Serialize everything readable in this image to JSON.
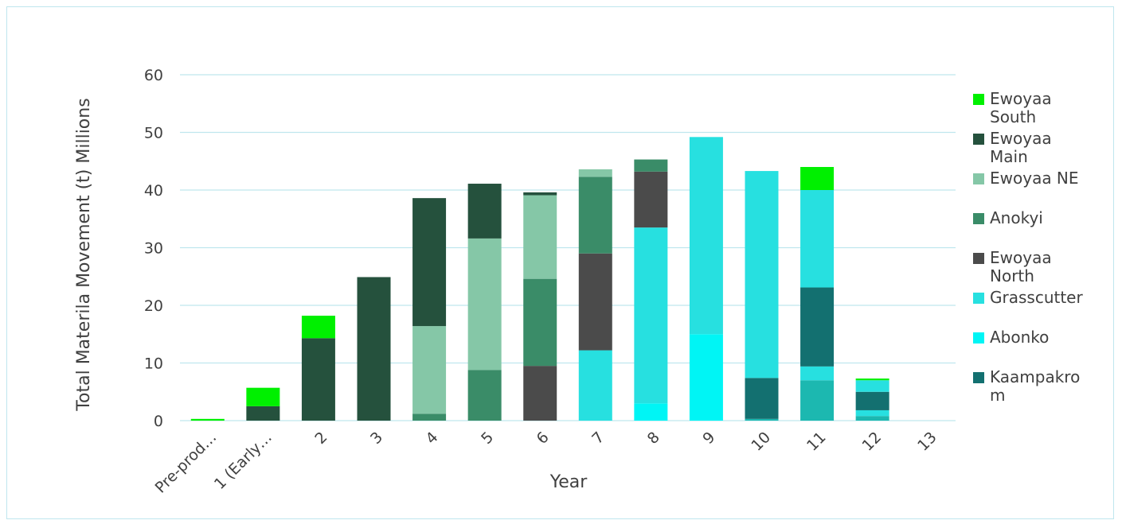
{
  "chart_data": {
    "type": "bar",
    "stacked": true,
    "xlabel": "Year",
    "ylabel": "Total Materila Movement (t) Millions",
    "ylim": [
      0,
      60
    ],
    "yticks": [
      0,
      10,
      20,
      30,
      40,
      50,
      60
    ],
    "grid": true,
    "legend_position": "right",
    "categories": [
      "Pre-prod…",
      "1 (Early…",
      "2",
      "3",
      "4",
      "5",
      "6",
      "7",
      "8",
      "9",
      "10",
      "11",
      "12",
      "13"
    ],
    "series": [
      {
        "name": "Kaampakrom",
        "color": "#137070",
        "values": [
          0,
          0,
          0,
          0,
          0,
          0,
          0,
          0,
          0,
          0,
          0,
          0,
          0,
          0
        ]
      },
      {
        "name": "Abonko",
        "color": "#00F5F5",
        "values": [
          0,
          0,
          0,
          0,
          0,
          0,
          0,
          0,
          3.0,
          15.0,
          0,
          0,
          0,
          0
        ]
      },
      {
        "name": "",
        "color": "#1CB8B0",
        "values": [
          0,
          0,
          0,
          0,
          0,
          0,
          0,
          0,
          0,
          0,
          0.3,
          7.0,
          0.8,
          0
        ]
      },
      {
        "name": "Grasscutter",
        "color": "#27E0E0",
        "values": [
          0,
          0,
          0,
          0,
          0,
          0,
          0,
          12.2,
          30.5,
          34.2,
          0,
          2.4,
          1.0,
          0
        ]
      },
      {
        "name": "",
        "color": "#137070",
        "values": [
          0,
          0,
          0,
          0,
          0,
          0,
          0,
          0,
          0,
          0,
          7.1,
          13.7,
          3.2,
          0
        ]
      },
      {
        "name": "",
        "color": "#27E0E0",
        "values": [
          0,
          0,
          0,
          0,
          0,
          0,
          0,
          0,
          0,
          0,
          35.9,
          16.9,
          2.0,
          0
        ]
      },
      {
        "name": "Ewoyaa North",
        "color": "#4B4B4B",
        "values": [
          0,
          0,
          0,
          0,
          0,
          0,
          9.5,
          16.8,
          9.7,
          0,
          0,
          0,
          0,
          0
        ]
      },
      {
        "name": "Anokyi",
        "color": "#3A8C68",
        "values": [
          0,
          0,
          0,
          0,
          1.2,
          8.8,
          15.1,
          13.3,
          2.1,
          0,
          0,
          0,
          0,
          0
        ]
      },
      {
        "name": "Ewoyaa NE",
        "color": "#85C7A7",
        "values": [
          0,
          0,
          0,
          0,
          15.2,
          22.8,
          14.5,
          1.3,
          0,
          0,
          0,
          0,
          0,
          0
        ]
      },
      {
        "name": "Ewoyaa Main",
        "color": "#25513D",
        "values": [
          0,
          2.5,
          14.3,
          24.9,
          22.2,
          9.5,
          0.5,
          0,
          0,
          0,
          0,
          0,
          0,
          0
        ]
      },
      {
        "name": "Ewoyaa South",
        "color": "#00F000",
        "values": [
          0.3,
          3.2,
          3.9,
          0,
          0,
          0,
          0,
          0,
          0,
          0,
          0,
          4.0,
          0.3,
          0
        ]
      }
    ],
    "legend": [
      {
        "name_lines": [
          "Ewoyaa",
          "South"
        ],
        "color": "#00F000"
      },
      {
        "name_lines": [
          "Ewoyaa",
          "Main"
        ],
        "color": "#25513D"
      },
      {
        "name_lines": [
          "Ewoyaa NE"
        ],
        "color": "#85C7A7"
      },
      {
        "name_lines": [
          "Anokyi"
        ],
        "color": "#3A8C68"
      },
      {
        "name_lines": [
          "Ewoyaa",
          "North"
        ],
        "color": "#4B4B4B"
      },
      {
        "name_lines": [
          "Grasscutter"
        ],
        "color": "#27E0E0"
      },
      {
        "name_lines": [
          "Abonko"
        ],
        "color": "#00F5F5"
      },
      {
        "name_lines": [
          "Kaampakro",
          "m"
        ],
        "color": "#137070"
      }
    ]
  }
}
